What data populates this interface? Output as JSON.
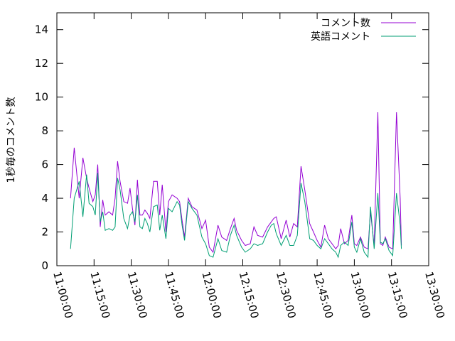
{
  "chart_data": {
    "type": "line",
    "ylabel": "1秒毎のコメント数",
    "xlabel": "",
    "ylim": [
      0,
      15
    ],
    "yticks": [
      0,
      2,
      4,
      6,
      8,
      10,
      12,
      14
    ],
    "ytick_labels": [
      "0",
      "2",
      "4",
      "6",
      "8",
      "10",
      "12",
      "14"
    ],
    "xlim": [
      "11:00:00",
      "13:30:00"
    ],
    "xticks": [
      "11:00:00",
      "11:15:00",
      "11:30:00",
      "11:45:00",
      "12:00:00",
      "12:15:00",
      "12:30:00",
      "12:45:00",
      "13:00:00",
      "13:15:00",
      "13:30:00"
    ],
    "legend_position": "top-right",
    "grid": false,
    "series": [
      {
        "name": "コメント数",
        "color": "#9400d3",
        "x": [
          "11:05:30",
          "11:07:00",
          "11:09:00",
          "11:10:30",
          "11:12:00",
          "11:13:00",
          "11:14:30",
          "11:15:30",
          "11:16:30",
          "11:17:30",
          "11:18:30",
          "11:19:30",
          "11:21:00",
          "11:22:30",
          "11:23:30",
          "11:24:30",
          "11:25:30",
          "11:27:00",
          "11:28:30",
          "11:29:30",
          "11:30:30",
          "11:31:30",
          "11:32:30",
          "11:33:30",
          "11:34:30",
          "11:35:30",
          "11:36:30",
          "11:37:30",
          "11:39:00",
          "11:40:30",
          "11:41:30",
          "11:42:30",
          "11:44:00",
          "11:45:00",
          "11:46:30",
          "11:48:30",
          "11:49:30",
          "11:50:30",
          "11:51:30",
          "11:53:00",
          "11:54:30",
          "11:56:30",
          "11:58:30",
          "12:00:00",
          "12:01:30",
          "12:03:00",
          "12:05:00",
          "12:06:30",
          "12:08:30",
          "12:10:00",
          "12:11:30",
          "12:12:30",
          "12:14:30",
          "12:16:00",
          "12:18:00",
          "12:19:30",
          "12:21:00",
          "12:23:00",
          "12:25:00",
          "12:26:30",
          "12:27:30",
          "12:28:30",
          "12:30:30",
          "12:32:30",
          "12:34:00",
          "12:35:30",
          "12:37:00",
          "12:38:30",
          "12:40:00",
          "12:42:00",
          "12:43:30",
          "12:45:00",
          "12:46:30",
          "12:48:00",
          "12:49:30",
          "12:51:00",
          "12:52:30",
          "12:53:30",
          "12:54:30",
          "12:56:00",
          "12:57:30",
          "12:59:00",
          "13:00:00",
          "13:01:00",
          "13:02:30",
          "13:04:00",
          "13:05:30",
          "13:06:30",
          "13:08:00",
          "13:09:30",
          "13:10:30",
          "13:11:30",
          "13:12:30",
          "13:14:00",
          "13:15:30",
          "13:17:00",
          "13:18:30",
          "13:19:00"
        ],
        "values": [
          4.0,
          7.0,
          4.0,
          6.4,
          5.2,
          4.6,
          3.8,
          4.2,
          6.0,
          2.3,
          3.9,
          3.0,
          3.2,
          3.0,
          4.0,
          6.2,
          5.0,
          3.8,
          3.7,
          4.6,
          3.4,
          2.4,
          5.1,
          3.0,
          3.0,
          3.3,
          3.1,
          2.8,
          5.0,
          5.0,
          3.0,
          4.8,
          2.0,
          3.8,
          4.2,
          4.0,
          3.8,
          2.7,
          1.7,
          4.0,
          3.5,
          3.3,
          2.2,
          2.7,
          1.1,
          0.8,
          2.4,
          1.7,
          1.5,
          2.2,
          2.8,
          2.1,
          1.5,
          1.2,
          1.3,
          2.3,
          1.8,
          1.7,
          2.3,
          2.6,
          2.8,
          2.9,
          1.6,
          2.7,
          1.7,
          2.5,
          2.3,
          5.9,
          4.5,
          2.5,
          2.0,
          1.5,
          1.1,
          2.4,
          1.6,
          1.3,
          1.0,
          1.2,
          2.2,
          1.3,
          1.5,
          3.0,
          1.3,
          1.2,
          1.7,
          1.1,
          1.0,
          3.2,
          1.2,
          9.1,
          1.3,
          1.2,
          1.7,
          1.1,
          1.0,
          9.1,
          4.0,
          1.2
        ]
      },
      {
        "name": "英語コメント",
        "color": "#009e73",
        "x": [
          "11:05:30",
          "11:07:00",
          "11:09:00",
          "11:10:30",
          "11:12:00",
          "11:13:00",
          "11:14:30",
          "11:15:30",
          "11:16:30",
          "11:17:30",
          "11:18:30",
          "11:19:30",
          "11:21:00",
          "11:22:30",
          "11:23:30",
          "11:24:30",
          "11:25:30",
          "11:27:00",
          "11:28:30",
          "11:29:30",
          "11:30:30",
          "11:31:30",
          "11:32:30",
          "11:33:30",
          "11:34:30",
          "11:35:30",
          "11:36:30",
          "11:37:30",
          "11:39:00",
          "11:40:30",
          "11:41:30",
          "11:42:30",
          "11:44:00",
          "11:45:00",
          "11:46:30",
          "11:48:30",
          "11:49:30",
          "11:50:30",
          "11:51:30",
          "11:53:00",
          "11:54:30",
          "11:56:30",
          "11:58:30",
          "12:00:00",
          "12:01:30",
          "12:03:00",
          "12:05:00",
          "12:06:30",
          "12:08:30",
          "12:10:00",
          "12:11:30",
          "12:12:30",
          "12:14:30",
          "12:16:00",
          "12:18:00",
          "12:19:30",
          "12:21:00",
          "12:23:00",
          "12:25:00",
          "12:26:30",
          "12:27:30",
          "12:28:30",
          "12:30:30",
          "12:32:30",
          "12:34:00",
          "12:35:30",
          "12:37:00",
          "12:38:30",
          "12:40:00",
          "12:42:00",
          "12:43:30",
          "12:45:00",
          "12:46:30",
          "12:48:00",
          "12:49:30",
          "12:51:00",
          "12:52:30",
          "12:53:30",
          "12:54:30",
          "12:56:00",
          "12:57:30",
          "12:59:00",
          "13:00:00",
          "13:01:00",
          "13:02:30",
          "13:04:00",
          "13:05:30",
          "13:06:30",
          "13:08:00",
          "13:09:30",
          "13:10:30",
          "13:11:30",
          "13:12:30",
          "13:14:00",
          "13:15:30",
          "13:17:00",
          "13:18:30",
          "13:19:00"
        ],
        "values": [
          1.0,
          4.0,
          5.0,
          2.9,
          5.4,
          3.7,
          3.5,
          3.0,
          5.5,
          2.6,
          3.2,
          2.1,
          2.2,
          2.1,
          2.3,
          5.2,
          4.5,
          2.8,
          2.2,
          3.0,
          3.2,
          2.6,
          4.2,
          2.3,
          2.2,
          2.8,
          2.5,
          2.0,
          3.5,
          3.6,
          2.1,
          3.0,
          1.6,
          3.4,
          3.2,
          3.8,
          3.6,
          2.4,
          1.5,
          3.8,
          3.4,
          3.0,
          1.7,
          1.3,
          0.6,
          0.5,
          1.6,
          0.9,
          0.8,
          1.8,
          2.4,
          1.8,
          1.1,
          0.8,
          1.0,
          1.3,
          1.2,
          1.3,
          2.0,
          2.4,
          2.5,
          1.9,
          1.2,
          1.8,
          1.2,
          1.2,
          1.8,
          4.9,
          3.8,
          1.6,
          1.5,
          1.2,
          1.0,
          1.6,
          1.3,
          1.0,
          0.8,
          0.5,
          1.2,
          1.4,
          1.2,
          2.6,
          1.1,
          0.8,
          1.6,
          0.8,
          0.5,
          3.5,
          1.0,
          4.3,
          1.4,
          1.3,
          1.6,
          0.9,
          0.6,
          4.3,
          2.4,
          1.0
        ]
      }
    ]
  }
}
